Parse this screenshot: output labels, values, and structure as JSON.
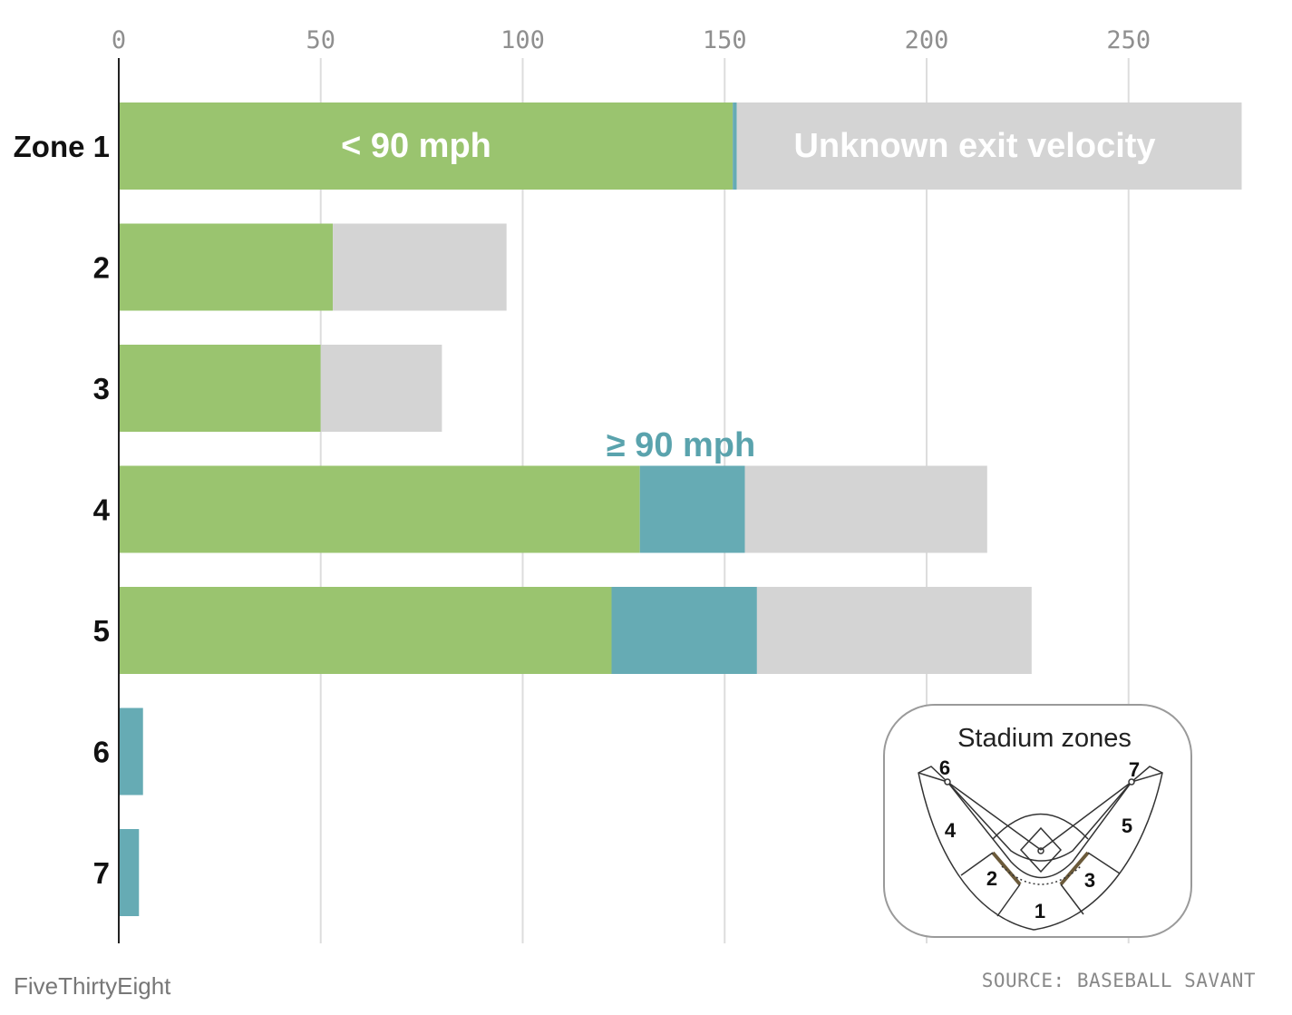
{
  "chart_data": {
    "type": "bar",
    "orientation": "horizontal",
    "stacked": true,
    "categories": [
      "Zone 1",
      "2",
      "3",
      "4",
      "5",
      "6",
      "7"
    ],
    "series": [
      {
        "name": "< 90 mph",
        "color": "#9ac46f",
        "values": [
          152,
          53,
          50,
          129,
          122,
          0,
          0
        ]
      },
      {
        "name": "≥ 90 mph",
        "color": "#66abb4",
        "values": [
          1,
          0,
          0,
          26,
          36,
          6,
          5
        ]
      },
      {
        "name": "Unknown exit velocity",
        "color": "#d4d4d4",
        "values": [
          125,
          43,
          30,
          60,
          68,
          0,
          0
        ]
      }
    ],
    "xlim": [
      0,
      275
    ],
    "xticks": [
      0,
      50,
      100,
      150,
      200,
      250
    ],
    "grid": true
  },
  "inset": {
    "title": "Stadium zones",
    "zones": [
      "1",
      "2",
      "3",
      "4",
      "5",
      "6",
      "7"
    ]
  },
  "footer": {
    "brand": "FiveThirtyEight",
    "source": "SOURCE: BASEBALL SAVANT"
  }
}
